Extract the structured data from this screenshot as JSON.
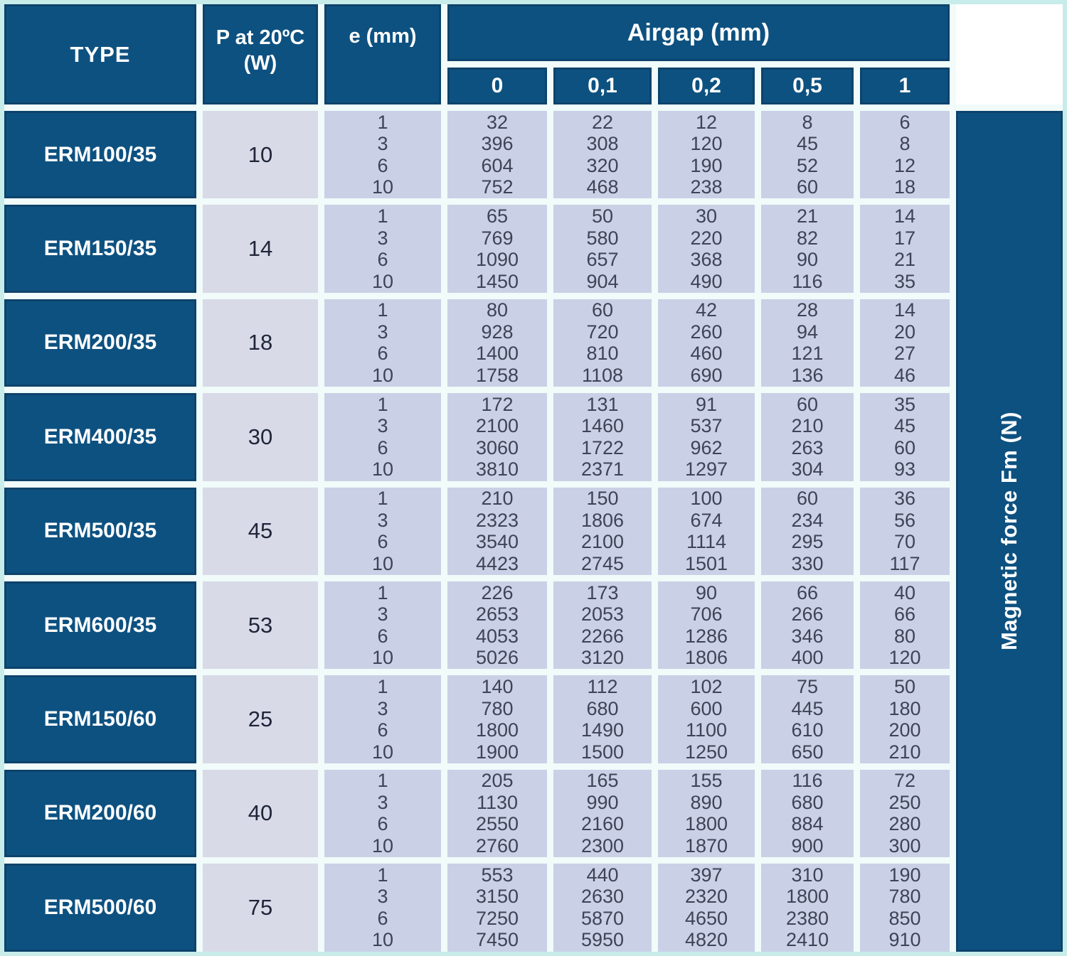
{
  "colors": {
    "header_blue": "#0d5180",
    "header_border": "#0d436b",
    "cell_light_gray": "#d8dae7",
    "cell_lavender": "#cad1e6",
    "frame_cyan": "#c7ecea",
    "header_text": "#ffffff",
    "data_text": "#3e4357"
  },
  "table": {
    "type_header": "TYPE",
    "power_header_lines": [
      "P at 20ºC",
      "(W)"
    ],
    "e_header": "e (mm)",
    "airgap_header": "Airgap (mm)",
    "airgap_columns": [
      "0",
      "0,1",
      "0,2",
      "0,5",
      "1"
    ],
    "sidebar_label": "Magnetic force Fm (N)",
    "rows": [
      {
        "type": "ERM100/35",
        "p": "10",
        "e": [
          1,
          3,
          6,
          10
        ],
        "g0": [
          32,
          396,
          604,
          752
        ],
        "g01": [
          22,
          308,
          320,
          468
        ],
        "g02": [
          12,
          120,
          190,
          238
        ],
        "g05": [
          8,
          45,
          52,
          60
        ],
        "g1": [
          6,
          8,
          12,
          18
        ]
      },
      {
        "type": "ERM150/35",
        "p": "14",
        "e": [
          1,
          3,
          6,
          10
        ],
        "g0": [
          65,
          769,
          1090,
          1450
        ],
        "g01": [
          50,
          580,
          657,
          904
        ],
        "g02": [
          30,
          220,
          368,
          490
        ],
        "g05": [
          21,
          82,
          90,
          116
        ],
        "g1": [
          14,
          17,
          21,
          35
        ]
      },
      {
        "type": "ERM200/35",
        "p": "18",
        "e": [
          1,
          3,
          6,
          10
        ],
        "g0": [
          80,
          928,
          1400,
          1758
        ],
        "g01": [
          60,
          720,
          810,
          1108
        ],
        "g02": [
          42,
          260,
          460,
          690
        ],
        "g05": [
          28,
          94,
          121,
          136
        ],
        "g1": [
          14,
          20,
          27,
          46
        ]
      },
      {
        "type": "ERM400/35",
        "p": "30",
        "e": [
          1,
          3,
          6,
          10
        ],
        "g0": [
          172,
          2100,
          3060,
          3810
        ],
        "g01": [
          131,
          1460,
          1722,
          2371
        ],
        "g02": [
          91,
          537,
          962,
          1297
        ],
        "g05": [
          60,
          210,
          263,
          304
        ],
        "g1": [
          35,
          45,
          60,
          93
        ]
      },
      {
        "type": "ERM500/35",
        "p": "45",
        "e": [
          1,
          3,
          6,
          10
        ],
        "g0": [
          210,
          2323,
          3540,
          4423
        ],
        "g01": [
          150,
          1806,
          2100,
          2745
        ],
        "g02": [
          100,
          674,
          1114,
          1501
        ],
        "g05": [
          60,
          234,
          295,
          330
        ],
        "g1": [
          36,
          56,
          70,
          117
        ]
      },
      {
        "type": "ERM600/35",
        "p": "53",
        "e": [
          1,
          3,
          6,
          10
        ],
        "g0": [
          226,
          2653,
          4053,
          5026
        ],
        "g01": [
          173,
          2053,
          2266,
          3120
        ],
        "g02": [
          90,
          706,
          1286,
          1806
        ],
        "g05": [
          66,
          266,
          346,
          400
        ],
        "g1": [
          40,
          66,
          80,
          120
        ]
      },
      {
        "type": "ERM150/60",
        "p": "25",
        "e": [
          1,
          3,
          6,
          10
        ],
        "g0": [
          140,
          780,
          1800,
          1900
        ],
        "g01": [
          112,
          680,
          1490,
          1500
        ],
        "g02": [
          102,
          600,
          1100,
          1250
        ],
        "g05": [
          75,
          445,
          610,
          650
        ],
        "g1": [
          50,
          180,
          200,
          210
        ]
      },
      {
        "type": "ERM200/60",
        "p": "40",
        "e": [
          1,
          3,
          6,
          10
        ],
        "g0": [
          205,
          1130,
          2550,
          2760
        ],
        "g01": [
          165,
          990,
          2160,
          2300
        ],
        "g02": [
          155,
          890,
          1800,
          1870
        ],
        "g05": [
          116,
          680,
          884,
          900
        ],
        "g1": [
          72,
          250,
          280,
          300
        ]
      },
      {
        "type": "ERM500/60",
        "p": "75",
        "e": [
          1,
          3,
          6,
          10
        ],
        "g0": [
          553,
          3150,
          7250,
          7450
        ],
        "g01": [
          440,
          2630,
          5870,
          5950
        ],
        "g02": [
          397,
          2320,
          4650,
          4820
        ],
        "g05": [
          310,
          1800,
          2380,
          2410
        ],
        "g1": [
          190,
          780,
          850,
          910
        ]
      }
    ]
  }
}
